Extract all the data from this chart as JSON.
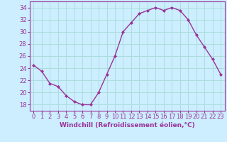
{
  "x": [
    0,
    1,
    2,
    3,
    4,
    5,
    6,
    7,
    8,
    9,
    10,
    11,
    12,
    13,
    14,
    15,
    16,
    17,
    18,
    19,
    20,
    21,
    22,
    23
  ],
  "y": [
    24.5,
    23.5,
    21.5,
    21.0,
    19.5,
    18.5,
    18.0,
    18.0,
    20.0,
    23.0,
    26.0,
    30.0,
    31.5,
    33.0,
    33.5,
    34.0,
    33.5,
    34.0,
    33.5,
    32.0,
    29.5,
    27.5,
    25.5,
    23.0
  ],
  "line_color": "#993399",
  "marker": "D",
  "marker_size": 2.0,
  "bg_color": "#cceeff",
  "grid_color": "#aadddd",
  "xlabel": "Windchill (Refroidissement éolien,°C)",
  "xlabel_fontsize": 6.5,
  "tick_fontsize": 6.0,
  "ylim": [
    17,
    35
  ],
  "yticks": [
    18,
    20,
    22,
    24,
    26,
    28,
    30,
    32,
    34
  ],
  "xlim": [
    -0.5,
    23.5
  ],
  "xticks": [
    0,
    1,
    2,
    3,
    4,
    5,
    6,
    7,
    8,
    9,
    10,
    11,
    12,
    13,
    14,
    15,
    16,
    17,
    18,
    19,
    20,
    21,
    22,
    23
  ]
}
